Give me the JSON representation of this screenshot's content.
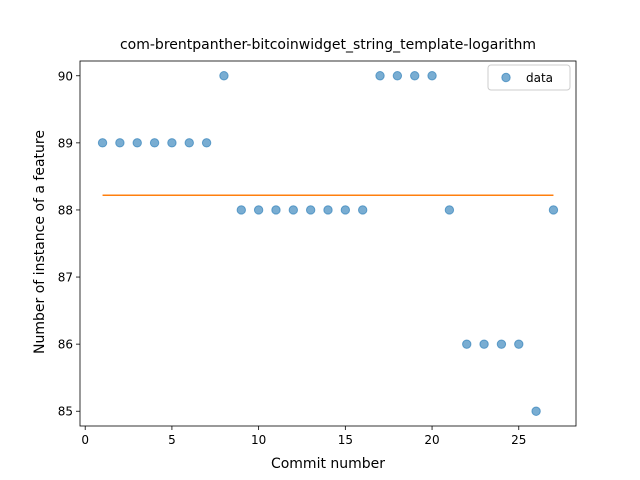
{
  "chart_data": {
    "type": "scatter",
    "title": "com-brentpanther-bitcoinwidget_string_template-logarithm",
    "xlabel": "Commit number",
    "ylabel": "Number of instance of a feature",
    "xlim": [
      -0.3,
      28.3
    ],
    "ylim": [
      84.78,
      90.22
    ],
    "xticks": [
      0,
      5,
      10,
      15,
      20,
      25
    ],
    "yticks": [
      85,
      86,
      87,
      88,
      89,
      90
    ],
    "grid": false,
    "legend_position": "top-right",
    "series": [
      {
        "name": "data",
        "kind": "scatter",
        "color": "#1f77b4",
        "x": [
          1,
          2,
          3,
          4,
          5,
          6,
          7,
          8,
          9,
          10,
          11,
          12,
          13,
          14,
          15,
          16,
          17,
          18,
          19,
          20,
          21,
          22,
          23,
          24,
          25,
          26,
          27
        ],
        "y": [
          89,
          89,
          89,
          89,
          89,
          89,
          89,
          90,
          88,
          88,
          88,
          88,
          88,
          88,
          88,
          88,
          90,
          90,
          90,
          90,
          88,
          86,
          86,
          86,
          86,
          85,
          88
        ]
      },
      {
        "kind": "line",
        "color": "#ff7f0e",
        "x": [
          1,
          27
        ],
        "y": [
          88.22,
          88.22
        ]
      }
    ]
  }
}
